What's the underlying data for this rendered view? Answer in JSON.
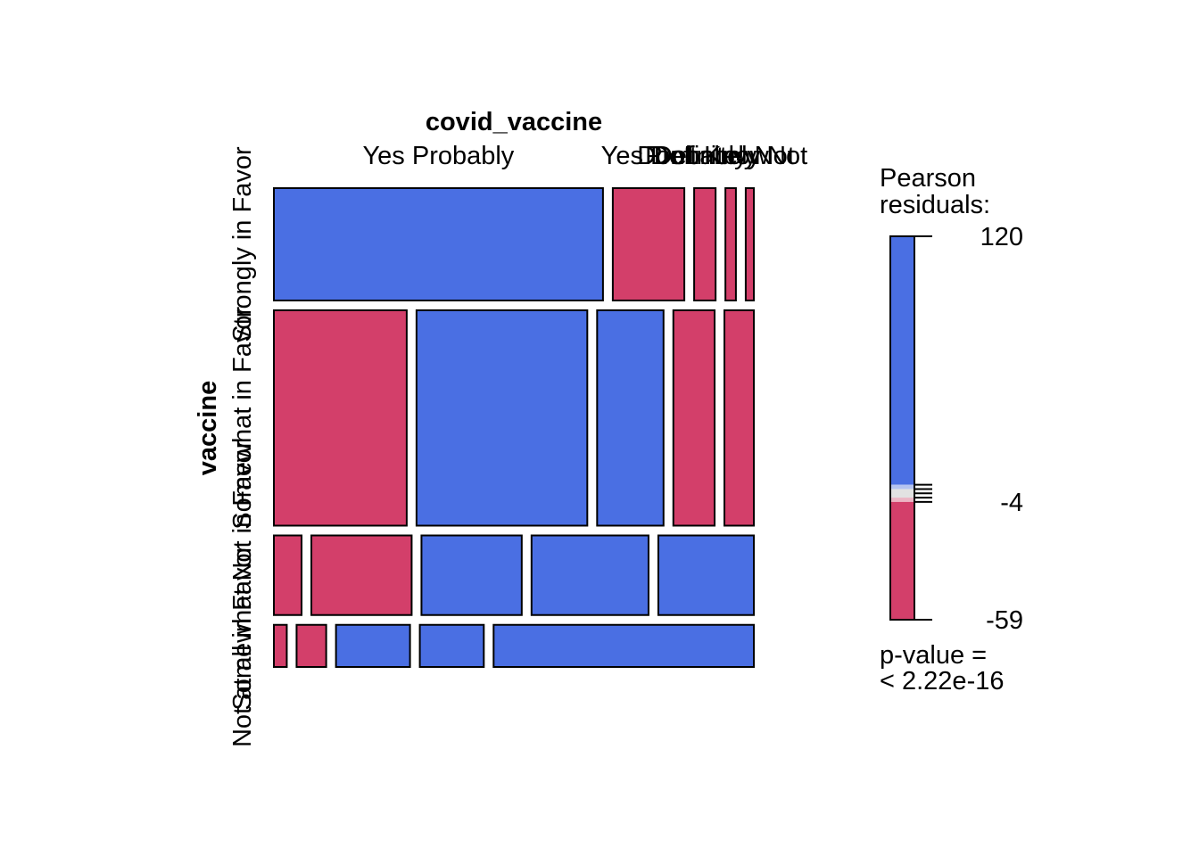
{
  "chart_data": {
    "type": "mosaic",
    "col_variable": "covid_vaccine",
    "row_variable": "vaccine",
    "col_levels": [
      "Yes Probably",
      "Yes Definitely",
      "Don't Know",
      "Probably Not",
      "Definitely Not"
    ],
    "row_levels": [
      "Strongly in Favor",
      "Somewhat in Favor",
      "Somewhat Not in Favor",
      "Not at all in Favor"
    ],
    "row_shares": [
      0.24,
      0.46,
      0.17,
      0.09
    ],
    "cells": [
      [
        {
          "col": "Yes Probably",
          "width_share": 0.69,
          "sign": "positive"
        },
        {
          "col": "Yes Definitely",
          "width_share": 0.15,
          "sign": "negative"
        },
        {
          "col": "Don't Know",
          "width_share": 0.045,
          "sign": "negative"
        },
        {
          "col": "Probably Not",
          "width_share": 0.022,
          "sign": "negative"
        },
        {
          "col": "Definitely Not",
          "width_share": 0.017,
          "sign": "negative"
        }
      ],
      [
        {
          "col": "Yes Probably",
          "width_share": 0.28,
          "sign": "negative"
        },
        {
          "col": "Yes Definitely",
          "width_share": 0.36,
          "sign": "positive"
        },
        {
          "col": "Don't Know",
          "width_share": 0.14,
          "sign": "positive"
        },
        {
          "col": "Probably Not",
          "width_share": 0.087,
          "sign": "negative"
        },
        {
          "col": "Definitely Not",
          "width_share": 0.062,
          "sign": "negative"
        }
      ],
      [
        {
          "col": "Yes Probably",
          "width_share": 0.058,
          "sign": "negative"
        },
        {
          "col": "Yes Definitely",
          "width_share": 0.21,
          "sign": "negative"
        },
        {
          "col": "Don't Know",
          "width_share": 0.21,
          "sign": "positive"
        },
        {
          "col": "Probably Not",
          "width_share": 0.245,
          "sign": "positive"
        },
        {
          "col": "Definitely Not",
          "width_share": 0.2,
          "sign": "positive"
        }
      ],
      [
        {
          "col": "Yes Probably",
          "width_share": 0.027,
          "sign": "negative"
        },
        {
          "col": "Yes Definitely",
          "width_share": 0.062,
          "sign": "negative"
        },
        {
          "col": "Don't Know",
          "width_share": 0.155,
          "sign": "positive"
        },
        {
          "col": "Probably Not",
          "width_share": 0.134,
          "sign": "positive"
        },
        {
          "col": "Definitely Not",
          "width_share": 0.545,
          "sign": "positive"
        }
      ]
    ],
    "legend": {
      "title_line1": "Pearson",
      "title_line2": "residuals:",
      "max_label": "120",
      "mid_label": "-4",
      "min_label": "-59",
      "max": 120,
      "mid": -4,
      "min": -59,
      "pvalue_line1": "p-value =",
      "pvalue_line2": "< 2.22e-16"
    },
    "colors": {
      "positive": "#4A6FE3",
      "negative": "#D33F6A",
      "neutral": "#E2E2E2",
      "light_positive": "#B5C3F0",
      "light_negative": "#EBB5C4"
    }
  }
}
